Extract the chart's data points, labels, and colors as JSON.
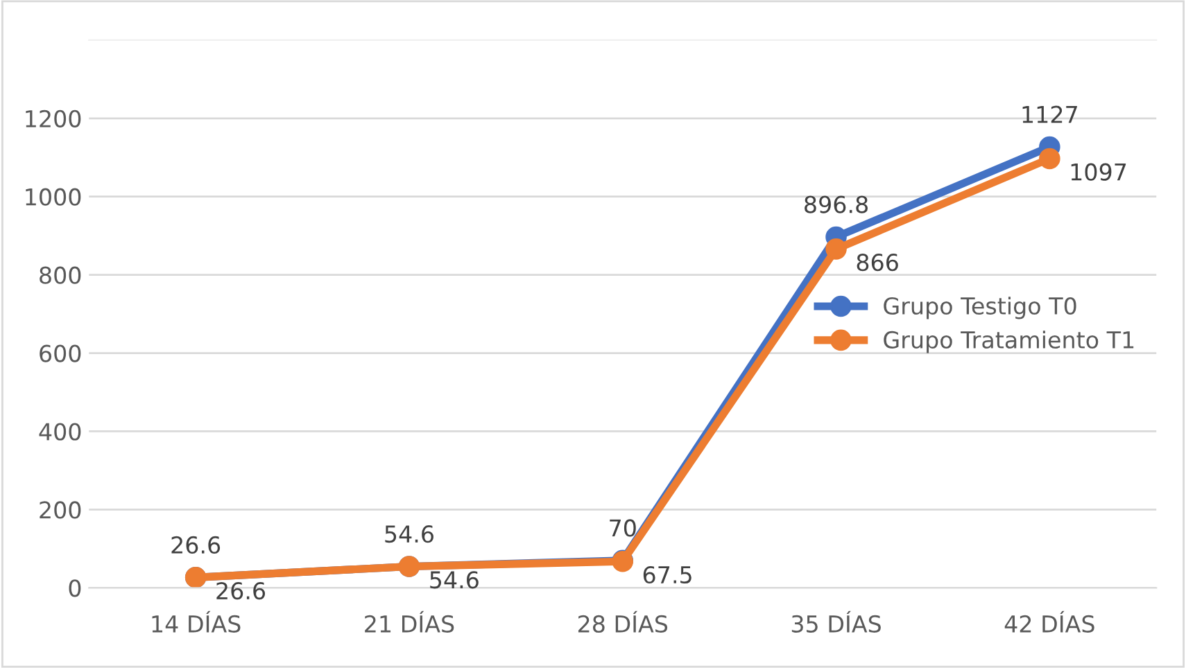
{
  "chart_data": {
    "type": "line",
    "categories": [
      "14 DÍAS",
      "21 DÍAS",
      "28 DÍAS",
      "35 DÍAS",
      "42 DÍAS"
    ],
    "series": [
      {
        "name": "Grupo Testigo T0",
        "color": "#4472c4",
        "values": [
          26.6,
          54.6,
          70,
          896.8,
          1127
        ]
      },
      {
        "name": "Grupo Tratamiento T1",
        "color": "#ed7d31",
        "values": [
          26.6,
          54.6,
          67.5,
          866,
          1097
        ]
      }
    ],
    "ylim": [
      0,
      1400
    ],
    "yticks": [
      0,
      200,
      400,
      600,
      800,
      1000,
      1200
    ],
    "grid": "y",
    "legend": "right",
    "marker": "circle",
    "line_style": "solid",
    "data_labels": true
  }
}
